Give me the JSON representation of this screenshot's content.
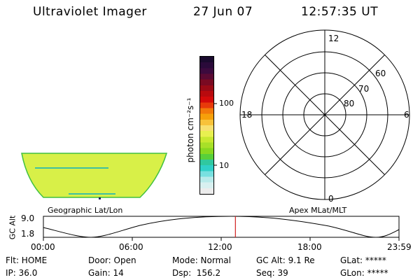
{
  "header": {
    "instrument": "Ultraviolet Imager",
    "date": "27 Jun 07",
    "time": "12:57:35 UT"
  },
  "colorbar": {
    "label": "photon cm⁻²s⁻¹",
    "ticks": [
      "100",
      "10"
    ],
    "colors": [
      "#1a0a2e",
      "#2a0a3a",
      "#3c0a3e",
      "#5a0a33",
      "#7a0a22",
      "#9a0a16",
      "#b80a0e",
      "#d40a0a",
      "#e83a0a",
      "#f27a0a",
      "#f6a00a",
      "#f8c23a",
      "#f8e070",
      "#e8f050",
      "#c8e830",
      "#a8e028",
      "#88d820",
      "#58d03a",
      "#30c8a0",
      "#30d0c8",
      "#78e0e0",
      "#b8eaea",
      "#d8f0f0",
      "#ececec"
    ]
  },
  "polar_plot": {
    "mlt_labels": [
      "12",
      "18",
      "6",
      "0"
    ],
    "lat_labels": [
      "60",
      "70",
      "80"
    ]
  },
  "geo_image": {
    "label": "Geographic Lat/Lon",
    "fill_color": "#d8f048",
    "edge_color": "#40c040"
  },
  "apex_label": "Apex MLat/MLT",
  "altitude_plot": {
    "ylabel": "GC Alt",
    "yticks": [
      "9.0",
      "1.8"
    ],
    "xticks": [
      "00:00",
      "06:00",
      "12:00",
      "18:00",
      "23:59"
    ],
    "marker_hour": 12.96,
    "marker_color": "#d02020"
  },
  "status": {
    "filter": "Flt: HOME",
    "ip": "IP: 36.0",
    "door": "Door: Open",
    "gain": "Gain: 14",
    "mode": "Mode: Normal",
    "dsp": "Dsp:  156.2",
    "gc_alt": "GC Alt: 9.1 Re",
    "seq": "Seq: 39",
    "glat": "GLat: *****",
    "glon": "GLon: *****"
  }
}
